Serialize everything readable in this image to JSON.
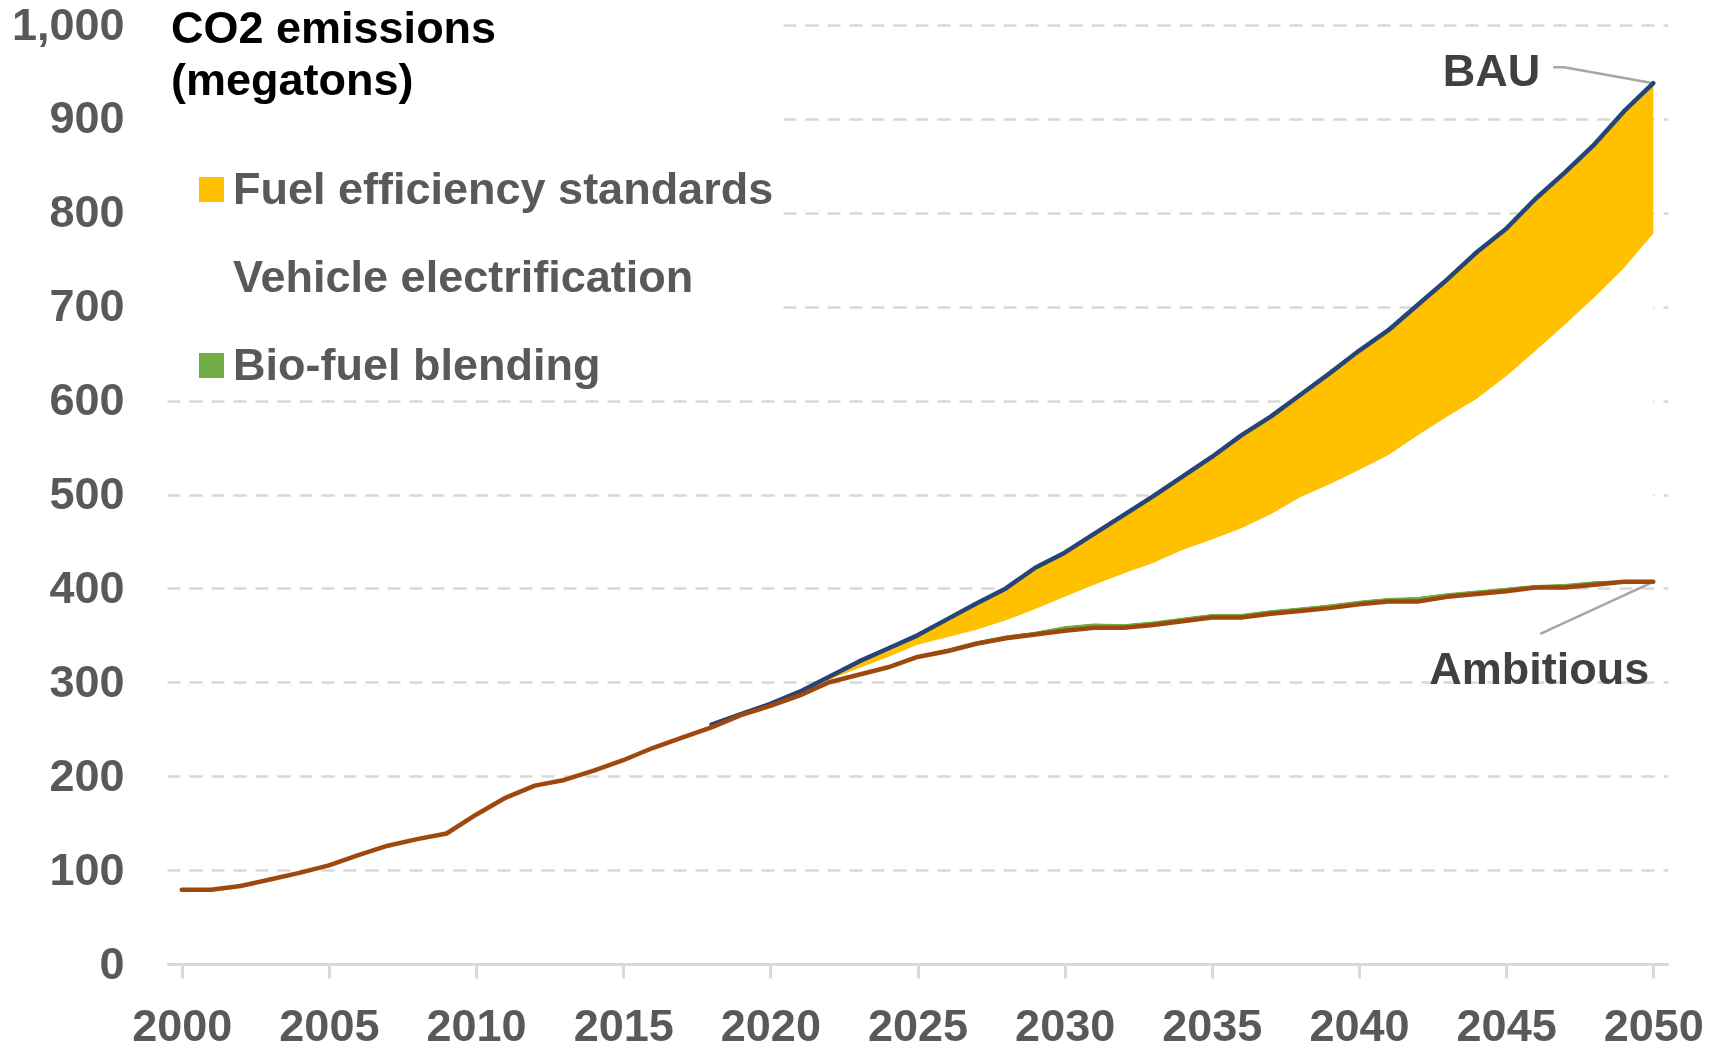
{
  "chart_data": {
    "type": "area",
    "ylabel": "CO2 emissions (megatons)",
    "x": [
      2000,
      2001,
      2002,
      2003,
      2004,
      2005,
      2006,
      2007,
      2008,
      2009,
      2010,
      2011,
      2012,
      2013,
      2014,
      2015,
      2016,
      2017,
      2018,
      2019,
      2020,
      2021,
      2022,
      2023,
      2024,
      2025,
      2026,
      2027,
      2028,
      2029,
      2030,
      2031,
      2032,
      2033,
      2034,
      2035,
      2036,
      2037,
      2038,
      2039,
      2040,
      2041,
      2042,
      2043,
      2044,
      2045,
      2046,
      2047,
      2048,
      2049,
      2050
    ],
    "series": [
      {
        "name": "Ambitious",
        "type": "line",
        "color": "#9e480e",
        "values": [
          79,
          79,
          83,
          90,
          97,
          105,
          116,
          126,
          133,
          139,
          159,
          177,
          190,
          196,
          206,
          217,
          230,
          241,
          252,
          265,
          275,
          286,
          300,
          308,
          316,
          327,
          333,
          341,
          347,
          351,
          355,
          358,
          358,
          361,
          365,
          369,
          369,
          373,
          376,
          379,
          383,
          386,
          386,
          391,
          394,
          397,
          401,
          401,
          404,
          407,
          407
        ]
      },
      {
        "name": "Bio-fuel blending",
        "color": "#70ad47",
        "values": [
          null,
          null,
          null,
          null,
          null,
          null,
          null,
          null,
          null,
          null,
          null,
          null,
          null,
          null,
          null,
          null,
          null,
          null,
          null,
          null,
          null,
          null,
          300,
          309,
          318,
          329,
          336,
          344,
          350,
          354,
          360,
          363,
          362,
          365,
          369,
          373,
          373,
          377,
          380,
          383,
          387,
          390,
          391,
          395,
          398,
          401,
          404,
          405,
          408,
          409,
          408
        ]
      },
      {
        "color": "#ffffff",
        "values": [
          null,
          null,
          null,
          null,
          null,
          null,
          null,
          null,
          null,
          null,
          null,
          null,
          null,
          null,
          null,
          null,
          null,
          null,
          null,
          null,
          null,
          288,
          303,
          315,
          327,
          340,
          348,
          356,
          366,
          378,
          391,
          404,
          416,
          427,
          441,
          452,
          464,
          479,
          497,
          511,
          526,
          542,
          563,
          583,
          602,
          626,
          653,
          681,
          710,
          741,
          778
        ]
      },
      {
        "name": "Fuel efficiency standards",
        "color": "#ffc000",
        "values": [
          null,
          null,
          null,
          null,
          null,
          null,
          null,
          null,
          null,
          null,
          null,
          null,
          null,
          null,
          null,
          null,
          null,
          null,
          null,
          null,
          null,
          290,
          306,
          322,
          336,
          350,
          367,
          384,
          400,
          422,
          438,
          458,
          478,
          498,
          519,
          540,
          563,
          583,
          606,
          629,
          653,
          675,
          702,
          729,
          758,
          783,
          815,
          843,
          873,
          908,
          938
        ]
      },
      {
        "name": "BAU",
        "type": "line",
        "color": "#264478",
        "values": [
          null,
          null,
          null,
          null,
          null,
          null,
          null,
          null,
          null,
          null,
          null,
          null,
          null,
          null,
          null,
          null,
          null,
          null,
          255,
          266,
          277,
          290,
          306,
          322,
          336,
          350,
          367,
          384,
          400,
          422,
          438,
          458,
          478,
          498,
          519,
          540,
          563,
          583,
          606,
          629,
          653,
          675,
          702,
          729,
          758,
          783,
          815,
          843,
          873,
          908,
          938
        ]
      }
    ],
    "annotations": [
      "Vehicle electrification"
    ],
    "xlim": [
      1999.5,
      2050.5
    ],
    "xticks": [
      2000,
      2005,
      2010,
      2015,
      2020,
      2025,
      2030,
      2035,
      2040,
      2045,
      2050
    ],
    "ylim": [
      0,
      1000
    ],
    "yticks": [
      0,
      100,
      200,
      300,
      400,
      500,
      600,
      700,
      800,
      900,
      {
        "value": 1000,
        "label": "1,000"
      }
    ],
    "grid": "y",
    "legend": "top left"
  }
}
